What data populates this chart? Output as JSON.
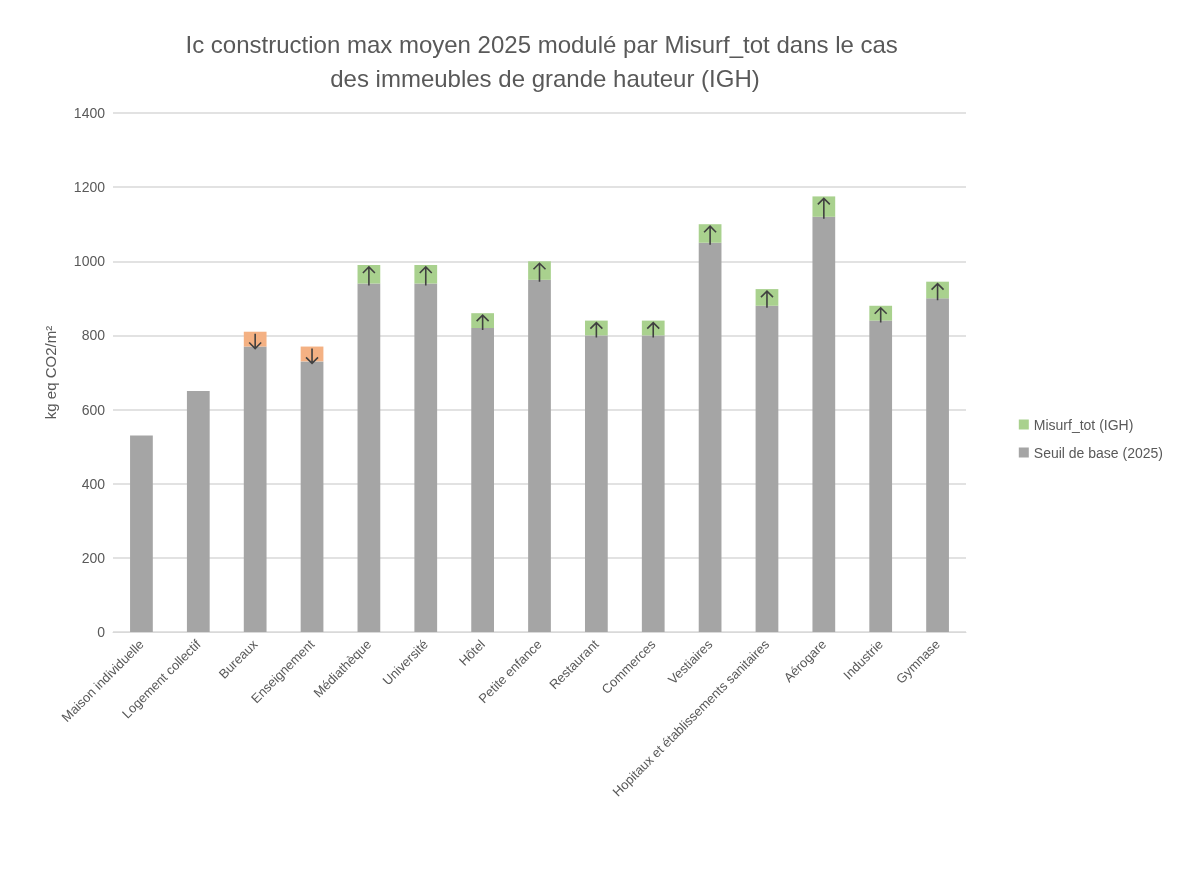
{
  "chart_data": {
    "type": "bar",
    "title": "Ic construction max moyen 2025 modulé par Misurf_tot dans le cas des immeubles de grande hauteur (IGH)",
    "ylabel": "kg eq CO2/m²",
    "categories": [
      "Maison individuelle",
      "Logement collectif",
      "Bureaux",
      "Enseignement",
      "Médiathèque",
      "Université",
      "Hôtel",
      "Petite enfance",
      "Restaurant",
      "Commerces",
      "Vestiaires",
      "Hopitaux et établissements sanitaires",
      "Aérogare",
      "Industrie",
      "Gymnase"
    ],
    "series": [
      {
        "name": "Seuil de base (2025)",
        "color": "#a5a5a5",
        "values": [
          530,
          650,
          770,
          730,
          940,
          940,
          820,
          950,
          800,
          800,
          1050,
          880,
          1120,
          840,
          900
        ]
      },
      {
        "name": "Misurf_tot (IGH)",
        "color": "#a9d18e",
        "values": [
          null,
          null,
          40,
          40,
          50,
          50,
          40,
          50,
          40,
          40,
          50,
          45,
          55,
          40,
          45
        ],
        "colors": [
          "#a9d18e",
          "#a9d18e",
          "#f4b183",
          "#f4b183",
          "#a9d18e",
          "#a9d18e",
          "#a9d18e",
          "#a9d18e",
          "#a9d18e",
          "#a9d18e",
          "#a9d18e",
          "#a9d18e",
          "#a9d18e",
          "#a9d18e",
          "#a9d18e"
        ]
      }
    ],
    "stacked": true,
    "ylim": [
      0,
      1400
    ],
    "yticks": [
      0,
      200,
      400,
      600,
      800,
      1000,
      1200,
      1400
    ],
    "grid": "y",
    "legend": "right"
  }
}
